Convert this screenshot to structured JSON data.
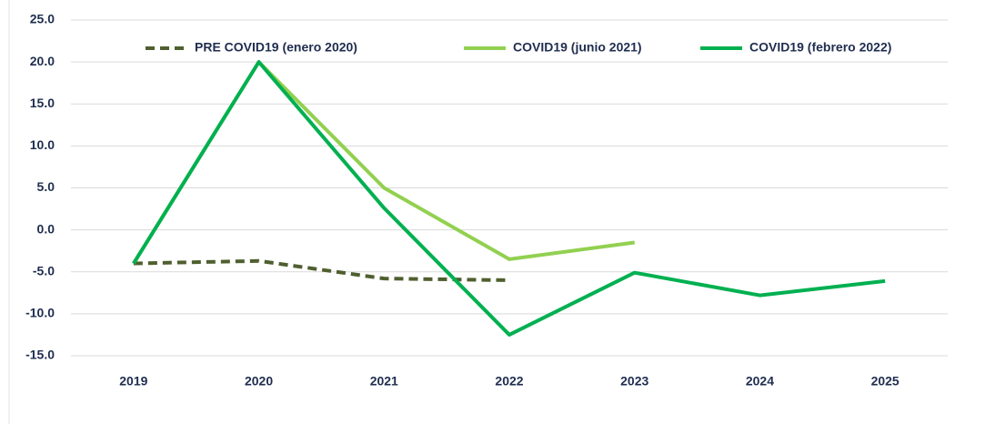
{
  "chart_data": {
    "type": "line",
    "categories": [
      "2019",
      "2020",
      "2021",
      "2022",
      "2023",
      "2024",
      "2025"
    ],
    "series": [
      {
        "name": "PRE COVID19 (enero 2020)",
        "color": "#4f5f2f",
        "dash": true,
        "values": [
          -4.0,
          -3.7,
          -5.8,
          -6.0,
          null,
          null,
          null
        ]
      },
      {
        "name": "COVID19 (junio 2021)",
        "color": "#92d050",
        "values": [
          -4.0,
          20.0,
          5.0,
          -3.5,
          -1.5,
          null,
          null
        ]
      },
      {
        "name": "COVID19 (febrero 2022)",
        "color": "#00b050",
        "values": [
          -4.0,
          20.0,
          2.6,
          -12.5,
          -5.1,
          -7.8,
          -6.1
        ]
      }
    ],
    "ylim": [
      -15,
      25
    ],
    "yticks": [
      {
        "value": -15,
        "label": "-15.0"
      },
      {
        "value": -10,
        "label": "-10.0"
      },
      {
        "value": -5,
        "label": "-5.0"
      },
      {
        "value": 0,
        "label": "0.0"
      },
      {
        "value": 5,
        "label": "5.0"
      },
      {
        "value": 10,
        "label": "10.0"
      },
      {
        "value": 15,
        "label": "15.0"
      },
      {
        "value": 20,
        "label": "20.0"
      },
      {
        "value": 25,
        "label": "25.0"
      }
    ],
    "grid": true,
    "legend": "top"
  }
}
